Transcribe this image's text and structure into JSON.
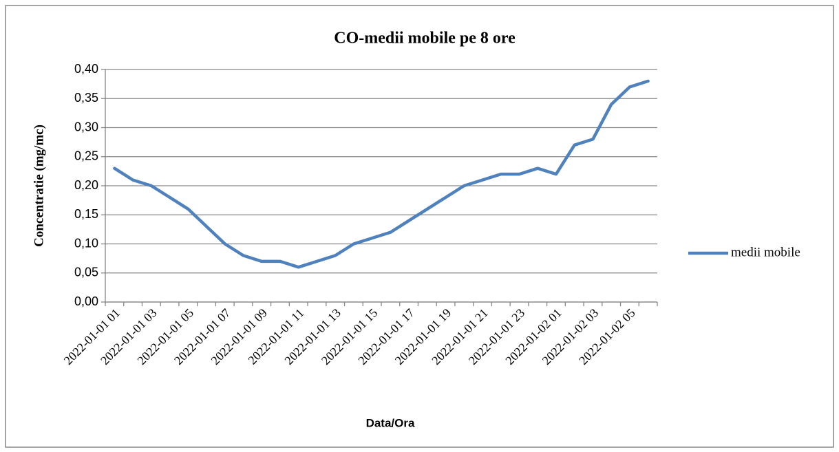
{
  "chart_data": {
    "type": "line",
    "title": "CO-medii mobile pe 8 ore",
    "x_label": "Data/Ora",
    "y_label": "Concentratie (mg/mc)",
    "categories": [
      "2022-01-01 01",
      null,
      "2022-01-01 03",
      null,
      "2022-01-01 05",
      null,
      "2022-01-01 07",
      null,
      "2022-01-01 09",
      null,
      "2022-01-01 11",
      null,
      "2022-01-01 13",
      null,
      "2022-01-01 15",
      null,
      "2022-01-01 17",
      null,
      "2022-01-01 19",
      null,
      "2022-01-01 21",
      null,
      "2022-01-01 23",
      null,
      "2022-01-02 01",
      null,
      "2022-01-02 03",
      null,
      "2022-01-02 05",
      null
    ],
    "series": [
      {
        "name": "medii mobile",
        "color": "#4f81bd",
        "values": [
          0.23,
          0.21,
          0.2,
          0.18,
          0.16,
          0.13,
          0.1,
          0.08,
          0.07,
          0.07,
          0.06,
          0.07,
          0.08,
          0.1,
          0.11,
          0.12,
          0.14,
          0.16,
          0.18,
          0.2,
          0.21,
          0.22,
          0.22,
          0.23,
          0.22,
          0.27,
          0.28,
          0.34,
          0.37,
          0.38
        ]
      }
    ],
    "ylim": [
      0,
      0.4
    ],
    "yticks": [
      {
        "value": 0,
        "label": "0,00"
      },
      {
        "value": 0.05,
        "label": "0,05"
      },
      {
        "value": 0.1,
        "label": "0,10"
      },
      {
        "value": 0.15,
        "label": "0,15"
      },
      {
        "value": 0.2,
        "label": "0,20"
      },
      {
        "value": 0.25,
        "label": "0,25"
      },
      {
        "value": 0.3,
        "label": "0,30"
      },
      {
        "value": 0.35,
        "label": "0,35"
      },
      {
        "value": 0.4,
        "label": "0,40"
      }
    ],
    "grid": true,
    "legend": "right"
  }
}
